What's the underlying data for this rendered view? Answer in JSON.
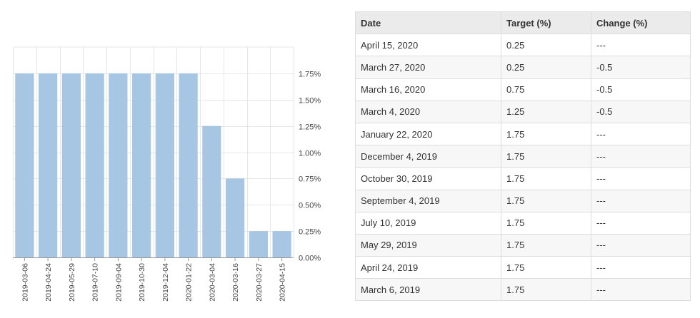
{
  "chart_data": {
    "type": "bar",
    "categories": [
      "2019-03-06",
      "2019-04-24",
      "2019-05-29",
      "2019-07-10",
      "2019-09-04",
      "2019-10-30",
      "2019-12-04",
      "2020-01-22",
      "2020-03-04",
      "2020-03-16",
      "2020-03-27",
      "2020-04-15"
    ],
    "values": [
      1.75,
      1.75,
      1.75,
      1.75,
      1.75,
      1.75,
      1.75,
      1.75,
      1.25,
      0.75,
      0.25,
      0.25
    ],
    "ylim": [
      0,
      2.0
    ],
    "yticks": [
      0,
      0.25,
      0.5,
      0.75,
      1.0,
      1.25,
      1.5,
      1.75
    ],
    "ytick_labels": [
      "0.00%",
      "0.25%",
      "0.50%",
      "0.75%",
      "1.00%",
      "1.25%",
      "1.50%",
      "1.75%"
    ],
    "y_axis_position": "right",
    "grid": true,
    "bar_color": "#a6c6e3",
    "title": "",
    "xlabel": "",
    "ylabel": ""
  },
  "table": {
    "headers": [
      "Date",
      "Target (%)",
      "Change (%)"
    ],
    "rows": [
      [
        "April 15, 2020",
        "0.25",
        "---"
      ],
      [
        "March 27, 2020",
        "0.25",
        "-0.5"
      ],
      [
        "March 16, 2020",
        "0.75",
        "-0.5"
      ],
      [
        "March 4, 2020",
        "1.25",
        "-0.5"
      ],
      [
        "January 22, 2020",
        "1.75",
        "---"
      ],
      [
        "December 4, 2019",
        "1.75",
        "---"
      ],
      [
        "October 30, 2019",
        "1.75",
        "---"
      ],
      [
        "September 4, 2019",
        "1.75",
        "---"
      ],
      [
        "July 10, 2019",
        "1.75",
        "---"
      ],
      [
        "May 29, 2019",
        "1.75",
        "---"
      ],
      [
        "April 24, 2019",
        "1.75",
        "---"
      ],
      [
        "March 6, 2019",
        "1.75",
        "---"
      ]
    ]
  }
}
